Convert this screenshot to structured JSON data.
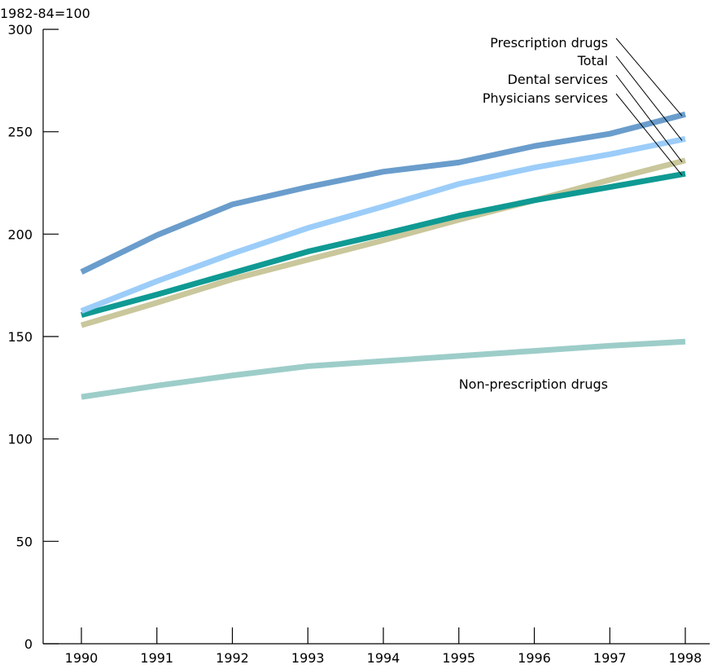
{
  "chart_data": {
    "type": "line",
    "unit_label": "1982-84=100",
    "x": [
      1990,
      1991,
      1992,
      1993,
      1994,
      1995,
      1996,
      1997,
      1998
    ],
    "x_tick_labels": [
      "1990",
      "1991",
      "1992",
      "1993",
      "1994",
      "1995",
      "1996",
      "1997",
      "1998"
    ],
    "ylim": [
      0,
      300
    ],
    "y_ticks": [
      0,
      50,
      100,
      150,
      200,
      250,
      300
    ],
    "y_tick_labels": [
      "0",
      "50",
      "100",
      "150",
      "200",
      "250",
      "300"
    ],
    "grid": false,
    "series": [
      {
        "name": "Non-prescription drugs",
        "color": "#9dcdc9",
        "values": [
          120.5,
          126,
          131,
          135.5,
          138,
          140.5,
          143,
          145.5,
          147.5
        ]
      },
      {
        "name": "Dental services",
        "color": "#c9c79b",
        "values": [
          155.5,
          166.5,
          178,
          187.5,
          197,
          207,
          216.5,
          226.5,
          236
        ]
      },
      {
        "name": "Physicians services",
        "color": "#0f9a93",
        "values": [
          160.5,
          170.5,
          181,
          191.5,
          200,
          209,
          216.5,
          223,
          229.5
        ]
      },
      {
        "name": "Total",
        "color": "#9ccdf9",
        "values": [
          162.5,
          177,
          190.5,
          203,
          213.5,
          224.5,
          232.5,
          239,
          246.5
        ]
      },
      {
        "name": "Prescription drugs",
        "color": "#6a9dcc",
        "values": [
          181.5,
          199.5,
          214.5,
          223,
          230.5,
          235,
          243,
          249,
          258.5
        ]
      }
    ]
  }
}
